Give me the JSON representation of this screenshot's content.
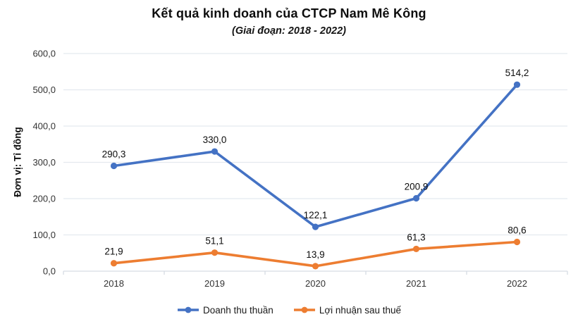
{
  "chart_data": {
    "type": "line",
    "title": "Kết quả kinh doanh của CTCP Nam Mê Kông",
    "subtitle": "(Giai đoạn: 2018 - 2022)",
    "ylabel": "Đơn vị: Tỉ đồng",
    "categories": [
      "2018",
      "2019",
      "2020",
      "2021",
      "2022"
    ],
    "series": [
      {
        "name": "Doanh thu thuần",
        "color": "#4472C4",
        "values": [
          290.3,
          330.0,
          122.1,
          200.9,
          514.2
        ]
      },
      {
        "name": "Lợi nhuận sau thuế",
        "color": "#ED7D31",
        "values": [
          21.9,
          51.1,
          13.9,
          61.3,
          80.6
        ]
      }
    ],
    "ylim": [
      0,
      600
    ],
    "ytick_step": 100,
    "decimal_separator": ",",
    "grid": true,
    "legend_position": "bottom",
    "colors": {
      "gridline": "#E4E9EF",
      "axis_line": "#D6DCE3"
    }
  }
}
